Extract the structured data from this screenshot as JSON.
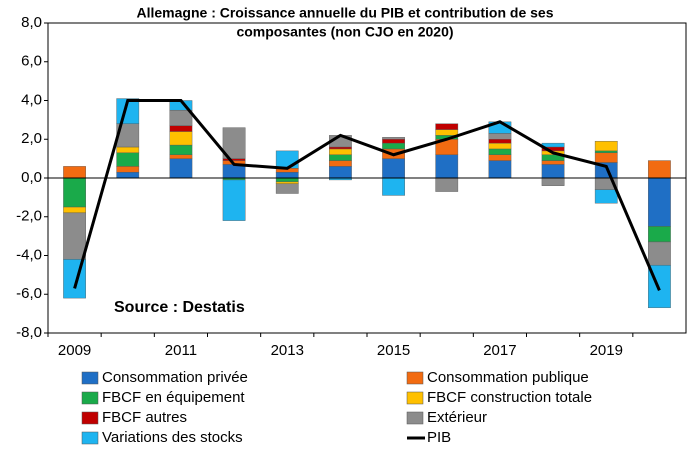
{
  "chart_data": {
    "type": "bar",
    "stacked": true,
    "title_lines": [
      "Allemagne : Croissance annuelle du PIB et contribution de ses",
      "composantes (non CJO en 2020)"
    ],
    "annotation": "Source : Destatis",
    "categories": [
      "2009",
      null,
      "2011",
      null,
      "2013",
      null,
      "2015",
      null,
      "2017",
      null,
      "2019",
      null
    ],
    "ylim": [
      -8,
      8
    ],
    "yticks": [
      {
        "value": -8,
        "label": "-8,0"
      },
      {
        "value": -6,
        "label": "-6,0"
      },
      {
        "value": -4,
        "label": "-4,0"
      },
      {
        "value": -2,
        "label": "-2,0"
      },
      {
        "value": 0,
        "label": "0,0"
      },
      {
        "value": 2,
        "label": "2,0"
      },
      {
        "value": 4,
        "label": "4,0"
      },
      {
        "value": 6,
        "label": "6,0"
      },
      {
        "value": 8,
        "label": "8,0"
      }
    ],
    "grid": false,
    "series": [
      {
        "name": "Consommation privée",
        "color": "#1f6fc5",
        "values": [
          0,
          0.3,
          1.0,
          0.7,
          0.3,
          0.6,
          1.0,
          1.2,
          0.9,
          0.7,
          0.8,
          -2.5
        ]
      },
      {
        "name": "Consommation publique",
        "color": "#f26b11",
        "values": [
          0.6,
          0.3,
          0.2,
          0.2,
          0.2,
          0.3,
          0.5,
          0.8,
          0.3,
          0.2,
          0.5,
          0.9
        ]
      },
      {
        "name": "FBCF en équipement",
        "color": "#1aaa4a",
        "values": [
          -1.5,
          0.7,
          0.5,
          -0.1,
          -0.2,
          0.3,
          0.3,
          0.2,
          0.3,
          0.3,
          0.1,
          -0.8
        ]
      },
      {
        "name": "FBCF construction totale",
        "color": "#ffc000",
        "values": [
          -0.3,
          0.3,
          0.7,
          0,
          -0.1,
          0.3,
          0,
          0.3,
          0.3,
          0.2,
          0.5,
          0
        ]
      },
      {
        "name": "FBCF autres",
        "color": "#c00000",
        "values": [
          0,
          0,
          0.3,
          0.1,
          0,
          0.1,
          0.2,
          0.3,
          0.2,
          0.2,
          0,
          0
        ]
      },
      {
        "name": "Extérieur",
        "color": "#8c8c8c",
        "values": [
          -2.4,
          1.2,
          0.8,
          1.6,
          -0.5,
          0.6,
          0.1,
          -0.7,
          0.3,
          -0.4,
          -0.6,
          -1.2
        ]
      },
      {
        "name": "Variations des stocks",
        "color": "#1eb4f0",
        "values": [
          -2.0,
          1.3,
          0.5,
          -2.1,
          0.9,
          -0.1,
          -0.9,
          0,
          0.6,
          0.2,
          -0.7,
          -2.2
        ]
      },
      {
        "name": "PIB",
        "color": "#000000",
        "type": "line",
        "values": [
          -5.7,
          4.0,
          4.0,
          0.7,
          0.5,
          2.2,
          1.2,
          2.0,
          2.9,
          1.3,
          0.6,
          -5.8
        ]
      }
    ],
    "legend": "bottom"
  }
}
